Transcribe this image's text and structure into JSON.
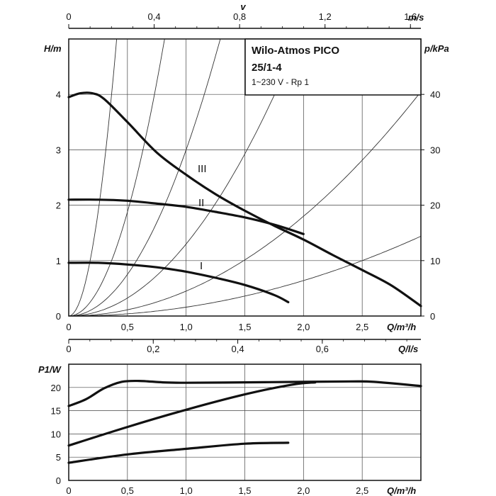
{
  "chart_data": [
    {
      "type": "line",
      "title": "Wilo-Atmos PICO",
      "subtitle_model": "25/1-4",
      "subtitle_spec": "1~230 V - Rp 1",
      "xlabel": "Q/m³/h",
      "ylabel": "H/m",
      "ylabel_right": "p/kPa",
      "top_axis_title": "v",
      "top_axis_unit": "m/s",
      "xlim": [
        0,
        3.0
      ],
      "ylim": [
        0,
        5.0
      ],
      "x_ticks": [
        "0",
        "0,5",
        "1,0",
        "1,5",
        "2,0",
        "2,5"
      ],
      "y_ticks": [
        "0",
        "1",
        "2",
        "3",
        "4"
      ],
      "right_ticks": [
        "0",
        "10",
        "20",
        "30",
        "40"
      ],
      "top_ticks": [
        "0",
        "0,4",
        "0,8",
        "1,2",
        "1,6"
      ],
      "grid": true,
      "series": [
        {
          "name": "III",
          "x": [
            0,
            0.1,
            0.2,
            0.3,
            0.5,
            0.75,
            1.0,
            1.25,
            1.5,
            1.75,
            2.0,
            2.25,
            2.5,
            2.75,
            3.0
          ],
          "y": [
            3.95,
            4.02,
            4.02,
            3.92,
            3.5,
            2.95,
            2.55,
            2.2,
            1.9,
            1.63,
            1.38,
            1.1,
            0.83,
            0.55,
            0.18
          ]
        },
        {
          "name": "II",
          "x": [
            0,
            0.25,
            0.5,
            0.75,
            1.0,
            1.25,
            1.5,
            1.75,
            1.9,
            2.0
          ],
          "y": [
            2.1,
            2.1,
            2.08,
            2.03,
            1.97,
            1.88,
            1.78,
            1.65,
            1.55,
            1.48
          ]
        },
        {
          "name": "I",
          "x": [
            0,
            0.25,
            0.5,
            0.75,
            1.0,
            1.25,
            1.5,
            1.75,
            1.87
          ],
          "y": [
            0.96,
            0.96,
            0.93,
            0.88,
            0.8,
            0.69,
            0.56,
            0.38,
            0.25
          ]
        }
      ],
      "system_curves_k": [
        30,
        7.5,
        3.0,
        1.3,
        0.45,
        0.16
      ]
    },
    {
      "type": "line",
      "xlabel": "Q/m³/h",
      "ylabel": "P1/W",
      "top_axis_title": "",
      "top_axis_unit": "Q/l/s",
      "xlim": [
        0,
        3.0
      ],
      "ylim": [
        0,
        25
      ],
      "x_ticks": [
        "0",
        "0,5",
        "1,0",
        "1,5",
        "2,0",
        "2,5"
      ],
      "y_ticks": [
        "0",
        "5",
        "10",
        "15",
        "20"
      ],
      "top_ticks": [
        "0",
        "0,2",
        "0,4",
        "0,6"
      ],
      "grid": true,
      "series": [
        {
          "name": "III",
          "x": [
            0,
            0.15,
            0.3,
            0.45,
            0.6,
            0.8,
            1.0,
            1.5,
            2.0,
            2.4,
            2.6,
            3.0
          ],
          "y": [
            16,
            17.5,
            19.8,
            21.2,
            21.4,
            21.1,
            21.0,
            21.1,
            21.2,
            21.3,
            21.2,
            20.3
          ]
        },
        {
          "name": "II",
          "x": [
            0,
            0.5,
            1.0,
            1.5,
            1.9,
            2.1
          ],
          "y": [
            7.5,
            11.5,
            15.2,
            18.5,
            20.6,
            21.1
          ]
        },
        {
          "name": "I",
          "x": [
            0,
            0.5,
            1.0,
            1.5,
            1.87
          ],
          "y": [
            3.8,
            5.6,
            6.8,
            7.9,
            8.1
          ]
        }
      ]
    }
  ]
}
